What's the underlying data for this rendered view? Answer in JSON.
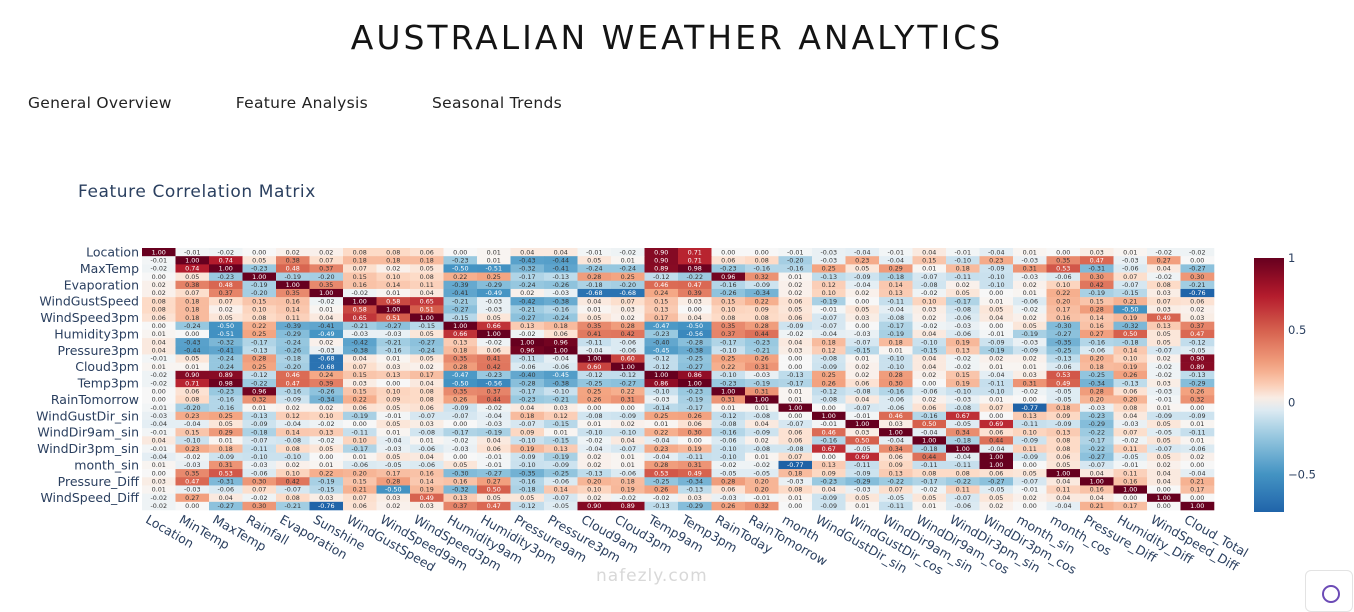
{
  "header": {
    "title": "AUSTRALIAN WEATHER ANALYTICS"
  },
  "tabs": [
    "General Overview",
    "Feature Analysis",
    "Seasonal Trends"
  ],
  "chart_data": {
    "type": "heatmap",
    "title": "Feature Correlation Matrix",
    "x_labels": [
      "Location",
      "MinTemp",
      "MaxTemp",
      "Rainfall",
      "Evaporation",
      "Sunshine",
      "WindGustSpeed",
      "WindSpeed9am",
      "WindSpeed3pm",
      "Humidity9am",
      "Humidity3pm",
      "Pressure9am",
      "Pressure3pm",
      "Cloud9am",
      "Cloud3pm",
      "Temp9am",
      "Temp3pm",
      "RainToday",
      "RainTomorrow",
      "month",
      "WindGustDir_sin",
      "WindGustDir_cos",
      "WindDir9am_sin",
      "WindDir9am_cos",
      "WindDir3pm_sin",
      "WindDir3pm_cos",
      "month_sin",
      "month_cos",
      "Pressure_Diff",
      "Humidity_Diff",
      "WindSpeed_Diff",
      "Cloud_Total"
    ],
    "y_labels_visible": [
      "Location",
      "MaxTemp",
      "Evaporation",
      "WindGustSpeed",
      "WindSpeed3pm",
      "Humidity3pm",
      "Pressure3pm",
      "Cloud3pm",
      "Temp3pm",
      "RainTomorrow",
      "WindGustDir_sin",
      "WindDir9am_sin",
      "WindDir3pm_sin",
      "month_sin",
      "Pressure_Diff",
      "WindSpeed_Diff"
    ],
    "colorscale": "RdBu_r",
    "colorbar": {
      "min": -0.76,
      "max": 1,
      "ticks": [
        "1",
        "0.5",
        "0",
        "−0.5"
      ],
      "low_color": "#053061",
      "high_color": "#67001f"
    },
    "values": [
      [
        1.0,
        -0.01,
        -0.02,
        0.0,
        0.02,
        0.02,
        0.08,
        0.08,
        0.06,
        0.0,
        0.01,
        0.04,
        0.04,
        -0.01,
        -0.02,
        0.9,
        0.71,
        0.0,
        0.0,
        -0.01,
        -0.03,
        -0.04,
        -0.01,
        0.04,
        -0.01,
        -0.04,
        0.01,
        0.0,
        0.03,
        0.01,
        -0.02,
        -0.02
      ],
      [
        -0.01,
        1.0,
        0.74,
        0.05,
        0.38,
        0.07,
        0.18,
        0.18,
        0.18,
        -0.23,
        0.01,
        -0.43,
        -0.44,
        0.05,
        0.01,
        0.9,
        0.71,
        0.06,
        0.08,
        -0.2,
        -0.03,
        0.23,
        -0.04,
        0.15,
        -0.1,
        0.23,
        -0.03,
        0.35,
        0.47,
        -0.03,
        0.27,
        0.0
      ],
      [
        -0.02,
        0.74,
        1.0,
        -0.23,
        0.48,
        0.37,
        0.07,
        0.02,
        0.05,
        -0.5,
        -0.51,
        -0.32,
        -0.41,
        -0.24,
        -0.24,
        0.89,
        0.98,
        -0.23,
        -0.16,
        -0.16,
        0.25,
        0.05,
        0.29,
        0.01,
        0.18,
        -0.09,
        0.31,
        0.53,
        -0.31,
        -0.06,
        0.04,
        -0.27
      ],
      [
        0.0,
        0.05,
        -0.23,
        1.0,
        -0.19,
        -0.2,
        0.15,
        0.1,
        0.08,
        0.22,
        0.25,
        -0.17,
        -0.13,
        0.28,
        0.25,
        -0.12,
        -0.22,
        0.96,
        0.32,
        0.01,
        -0.13,
        -0.09,
        -0.18,
        -0.07,
        -0.11,
        -0.1,
        -0.03,
        -0.06,
        0.3,
        0.07,
        -0.02,
        0.3
      ],
      [
        0.02,
        0.38,
        0.48,
        -0.19,
        1.0,
        0.35,
        0.16,
        0.14,
        0.11,
        -0.39,
        -0.29,
        -0.24,
        -0.26,
        -0.18,
        -0.2,
        0.46,
        0.47,
        -0.16,
        -0.09,
        0.02,
        0.12,
        -0.04,
        0.14,
        -0.08,
        0.02,
        -0.1,
        0.02,
        0.1,
        0.42,
        -0.07,
        0.08,
        -0.21
      ],
      [
        0.02,
        0.07,
        0.37,
        -0.2,
        0.35,
        1.0,
        -0.02,
        0.01,
        0.04,
        -0.41,
        -0.49,
        0.02,
        -0.03,
        -0.68,
        -0.68,
        0.24,
        0.39,
        -0.26,
        -0.34,
        0.02,
        0.1,
        0.02,
        0.13,
        -0.02,
        0.05,
        0.0,
        0.01,
        0.22,
        -0.19,
        -0.15,
        0.03,
        -0.76
      ],
      [
        0.08,
        0.18,
        0.07,
        0.15,
        0.16,
        -0.02,
        1.0,
        0.58,
        0.65,
        -0.21,
        -0.03,
        -0.42,
        -0.38,
        0.04,
        0.07,
        0.15,
        0.03,
        0.15,
        0.22,
        0.06,
        -0.19,
        0.0,
        -0.11,
        0.1,
        -0.17,
        0.01,
        -0.06,
        0.2,
        0.15,
        0.21,
        0.07,
        0.06
      ],
      [
        0.08,
        0.18,
        0.02,
        0.1,
        0.14,
        0.01,
        0.58,
        1.0,
        0.51,
        -0.27,
        -0.03,
        -0.21,
        -0.16,
        0.01,
        0.03,
        0.13,
        0.0,
        0.1,
        0.09,
        0.05,
        -0.01,
        0.05,
        -0.04,
        0.03,
        -0.08,
        0.05,
        -0.02,
        0.17,
        0.28,
        -0.5,
        0.03,
        0.02
      ],
      [
        0.06,
        0.18,
        0.05,
        0.08,
        0.11,
        0.04,
        0.65,
        0.51,
        1.0,
        -0.15,
        0.05,
        -0.27,
        -0.24,
        0.05,
        0.02,
        0.17,
        0.04,
        0.08,
        0.08,
        0.06,
        -0.07,
        0.03,
        -0.08,
        0.02,
        -0.06,
        0.04,
        0.02,
        0.16,
        0.14,
        0.19,
        0.49,
        0.03
      ],
      [
        0.0,
        -0.24,
        -0.5,
        0.22,
        -0.39,
        -0.41,
        -0.21,
        -0.27,
        -0.15,
        1.0,
        0.66,
        0.13,
        0.18,
        0.35,
        0.28,
        -0.47,
        -0.5,
        0.35,
        0.28,
        -0.09,
        -0.07,
        0.0,
        -0.17,
        -0.02,
        -0.03,
        0.0,
        0.05,
        -0.3,
        0.16,
        -0.32,
        0.13,
        0.37
      ],
      [
        0.01,
        0.0,
        -0.51,
        0.25,
        -0.29,
        -0.49,
        -0.03,
        -0.03,
        0.05,
        0.66,
        1.0,
        -0.02,
        0.06,
        0.41,
        0.42,
        -0.23,
        -0.56,
        0.37,
        0.44,
        -0.02,
        -0.04,
        -0.03,
        -0.19,
        0.04,
        -0.06,
        -0.01,
        -0.19,
        -0.27,
        0.27,
        0.5,
        0.05,
        0.47
      ],
      [
        0.04,
        -0.43,
        -0.32,
        -0.17,
        -0.24,
        0.02,
        -0.42,
        -0.21,
        -0.27,
        0.13,
        -0.02,
        1.0,
        0.96,
        -0.11,
        -0.06,
        -0.4,
        -0.28,
        -0.17,
        -0.23,
        0.04,
        0.18,
        -0.07,
        0.18,
        -0.1,
        0.19,
        -0.09,
        -0.03,
        -0.35,
        -0.16,
        -0.18,
        0.05,
        -0.12
      ],
      [
        0.04,
        -0.44,
        -0.41,
        -0.13,
        -0.26,
        -0.03,
        -0.38,
        -0.16,
        -0.24,
        0.18,
        0.06,
        0.96,
        1.0,
        -0.04,
        -0.06,
        -0.45,
        -0.38,
        -0.1,
        -0.21,
        0.03,
        0.12,
        -0.15,
        0.01,
        -0.15,
        0.13,
        -0.19,
        -0.09,
        -0.25,
        -0.06,
        0.14,
        -0.07,
        -0.05
      ],
      [
        -0.01,
        0.05,
        -0.24,
        0.28,
        -0.18,
        -0.68,
        0.04,
        0.01,
        0.05,
        0.35,
        0.41,
        -0.11,
        -0.04,
        1.0,
        0.6,
        -0.12,
        -0.25,
        0.25,
        0.26,
        0.0,
        -0.08,
        0.01,
        -0.1,
        0.04,
        -0.02,
        0.02,
        0.02,
        -0.13,
        0.2,
        0.1,
        0.02,
        0.9
      ],
      [
        0.01,
        0.01,
        -0.24,
        0.25,
        -0.2,
        -0.68,
        0.07,
        0.03,
        0.02,
        0.28,
        0.42,
        -0.06,
        -0.06,
        0.6,
        1.0,
        -0.12,
        -0.27,
        0.22,
        0.31,
        0.0,
        -0.09,
        0.02,
        -0.1,
        0.04,
        -0.02,
        0.01,
        0.01,
        -0.06,
        0.18,
        0.19,
        -0.02,
        0.89
      ],
      [
        -0.02,
        0.9,
        0.89,
        -0.12,
        0.46,
        0.24,
        0.15,
        0.13,
        0.17,
        -0.47,
        -0.23,
        -0.4,
        -0.45,
        -0.12,
        -0.12,
        1.0,
        0.86,
        -0.1,
        -0.03,
        -0.13,
        0.25,
        0.02,
        0.28,
        0.02,
        0.15,
        -0.04,
        0.03,
        0.53,
        -0.25,
        0.26,
        -0.02,
        -0.13
      ],
      [
        -0.02,
        0.71,
        0.98,
        -0.22,
        0.47,
        0.39,
        0.03,
        0.0,
        0.04,
        -0.5,
        -0.56,
        -0.28,
        -0.38,
        -0.25,
        -0.27,
        0.86,
        1.0,
        -0.23,
        -0.19,
        -0.17,
        0.26,
        0.06,
        0.3,
        0.0,
        0.19,
        -0.11,
        0.31,
        0.49,
        -0.34,
        -0.13,
        0.03,
        -0.29
      ],
      [
        0.0,
        0.06,
        -0.23,
        0.96,
        -0.16,
        -0.26,
        0.15,
        0.1,
        0.08,
        0.35,
        0.37,
        -0.17,
        -0.1,
        0.25,
        0.22,
        -0.1,
        -0.23,
        1.0,
        0.31,
        0.01,
        -0.12,
        -0.08,
        -0.16,
        -0.06,
        -0.1,
        -0.1,
        -0.02,
        -0.05,
        0.28,
        0.06,
        -0.03,
        0.26
      ],
      [
        0.0,
        0.08,
        -0.16,
        0.32,
        -0.09,
        -0.34,
        0.22,
        0.09,
        0.08,
        0.26,
        0.44,
        -0.23,
        -0.21,
        0.26,
        0.31,
        -0.03,
        -0.19,
        0.31,
        1.0,
        0.01,
        -0.08,
        0.04,
        -0.06,
        0.02,
        -0.03,
        0.01,
        0.0,
        -0.05,
        0.2,
        0.2,
        -0.01,
        0.32
      ],
      [
        -0.01,
        -0.2,
        -0.16,
        0.01,
        0.02,
        0.02,
        0.06,
        0.05,
        0.06,
        -0.09,
        -0.02,
        0.04,
        0.03,
        0.0,
        0.0,
        -0.14,
        -0.17,
        0.01,
        0.01,
        1.0,
        0.0,
        -0.07,
        -0.06,
        0.06,
        -0.08,
        0.07,
        -0.77,
        0.18,
        -0.03,
        0.08,
        0.01,
        0.0
      ],
      [
        -0.03,
        0.23,
        0.25,
        -0.13,
        0.12,
        0.1,
        -0.19,
        -0.01,
        -0.07,
        -0.07,
        -0.04,
        0.18,
        0.12,
        -0.08,
        -0.09,
        0.25,
        0.26,
        -0.12,
        -0.08,
        0.0,
        1.0,
        -0.01,
        0.46,
        -0.16,
        0.67,
        0.0,
        0.13,
        0.09,
        -0.23,
        0.04,
        -0.09,
        -0.09
      ],
      [
        -0.04,
        -0.04,
        0.05,
        -0.09,
        -0.04,
        -0.02,
        0.0,
        0.05,
        0.03,
        0.0,
        -0.03,
        -0.07,
        -0.15,
        0.01,
        0.02,
        0.01,
        0.06,
        -0.08,
        0.04,
        -0.07,
        -0.01,
        1.0,
        0.03,
        0.5,
        -0.05,
        0.69,
        -0.11,
        -0.09,
        -0.29,
        -0.03,
        0.05,
        0.01
      ],
      [
        -0.01,
        0.15,
        0.29,
        -0.18,
        0.14,
        0.13,
        -0.11,
        0.01,
        -0.08,
        -0.17,
        -0.19,
        0.09,
        0.01,
        -0.1,
        -0.1,
        0.22,
        0.3,
        -0.16,
        -0.09,
        0.06,
        0.46,
        0.03,
        1.0,
        -0.04,
        0.34,
        0.06,
        0.1,
        0.13,
        -0.22,
        0.07,
        -0.05,
        -0.11
      ],
      [
        0.04,
        -0.1,
        0.01,
        -0.07,
        -0.08,
        -0.02,
        0.1,
        -0.04,
        0.01,
        -0.02,
        0.04,
        -0.1,
        -0.15,
        -0.02,
        0.04,
        -0.04,
        0.0,
        -0.06,
        0.02,
        0.06,
        -0.16,
        0.5,
        -0.04,
        1.0,
        -0.18,
        0.44,
        -0.09,
        0.08,
        -0.17,
        -0.02,
        0.05,
        0.01
      ],
      [
        -0.01,
        0.23,
        0.18,
        -0.11,
        0.08,
        0.05,
        -0.17,
        -0.03,
        -0.06,
        -0.03,
        0.06,
        0.19,
        0.13,
        -0.04,
        -0.07,
        0.23,
        0.19,
        -0.1,
        -0.08,
        -0.08,
        0.67,
        -0.05,
        0.34,
        -0.18,
        1.0,
        -0.04,
        0.11,
        0.08,
        -0.22,
        0.11,
        -0.07,
        -0.06
      ],
      [
        -0.04,
        -0.02,
        -0.09,
        -0.1,
        -0.1,
        0.0,
        0.01,
        0.05,
        0.04,
        0.0,
        -0.01,
        -0.09,
        -0.19,
        0.02,
        0.01,
        -0.04,
        -0.11,
        -0.1,
        0.01,
        0.07,
        0.0,
        0.69,
        0.06,
        0.44,
        -0.04,
        1.0,
        -0.09,
        0.06,
        -0.27,
        -0.05,
        0.05,
        0.02
      ],
      [
        0.01,
        -0.03,
        0.31,
        -0.03,
        0.02,
        0.01,
        -0.06,
        -0.05,
        -0.06,
        0.05,
        -0.01,
        -0.1,
        -0.09,
        0.02,
        0.01,
        0.28,
        0.31,
        -0.02,
        -0.02,
        -0.77,
        0.13,
        -0.11,
        0.09,
        -0.11,
        -0.11,
        1.0,
        0.0,
        0.05,
        -0.07,
        -0.01,
        0.02,
        0.0
      ],
      [
        0.0,
        0.35,
        0.53,
        -0.06,
        0.1,
        0.22,
        0.2,
        0.17,
        0.16,
        -0.3,
        -0.27,
        -0.35,
        -0.25,
        -0.13,
        -0.06,
        0.53,
        0.49,
        -0.05,
        -0.05,
        0.18,
        0.09,
        -0.09,
        0.13,
        0.08,
        0.08,
        0.06,
        0.05,
        1.0,
        0.04,
        0.11,
        0.04,
        -0.04
      ],
      [
        0.03,
        0.47,
        -0.31,
        0.3,
        0.42,
        -0.19,
        0.15,
        0.28,
        0.14,
        0.16,
        0.27,
        -0.16,
        -0.06,
        0.2,
        0.18,
        -0.25,
        -0.34,
        0.28,
        0.2,
        -0.03,
        -0.23,
        -0.29,
        -0.22,
        -0.17,
        -0.22,
        -0.27,
        -0.07,
        0.04,
        1.0,
        0.16,
        0.04,
        0.21
      ],
      [
        0.01,
        -0.03,
        -0.06,
        0.07,
        -0.07,
        -0.15,
        0.21,
        -0.5,
        0.19,
        -0.32,
        0.5,
        -0.18,
        0.14,
        0.1,
        0.19,
        0.26,
        -0.13,
        0.06,
        0.2,
        0.08,
        0.04,
        -0.03,
        0.07,
        -0.02,
        0.11,
        -0.05,
        -0.01,
        0.11,
        0.16,
        1.0,
        0.0,
        0.17
      ],
      [
        -0.02,
        0.27,
        0.04,
        -0.02,
        0.08,
        0.03,
        0.07,
        0.03,
        0.49,
        0.13,
        0.05,
        0.05,
        -0.07,
        0.02,
        -0.02,
        -0.02,
        0.03,
        -0.03,
        -0.01,
        0.01,
        -0.09,
        0.05,
        -0.05,
        0.05,
        -0.07,
        0.05,
        0.02,
        0.04,
        0.04,
        0.0,
        1.0,
        0.0
      ],
      [
        -0.02,
        0.0,
        -0.27,
        0.3,
        -0.21,
        -0.76,
        0.06,
        0.02,
        0.03,
        0.37,
        0.47,
        -0.12,
        -0.05,
        0.9,
        0.89,
        -0.13,
        -0.29,
        0.26,
        0.32,
        0.0,
        -0.09,
        0.01,
        -0.11,
        0.01,
        -0.06,
        0.02,
        0.0,
        -0.04,
        0.21,
        0.17,
        0.0,
        1.0
      ]
    ]
  },
  "watermark": "nafezly.com"
}
